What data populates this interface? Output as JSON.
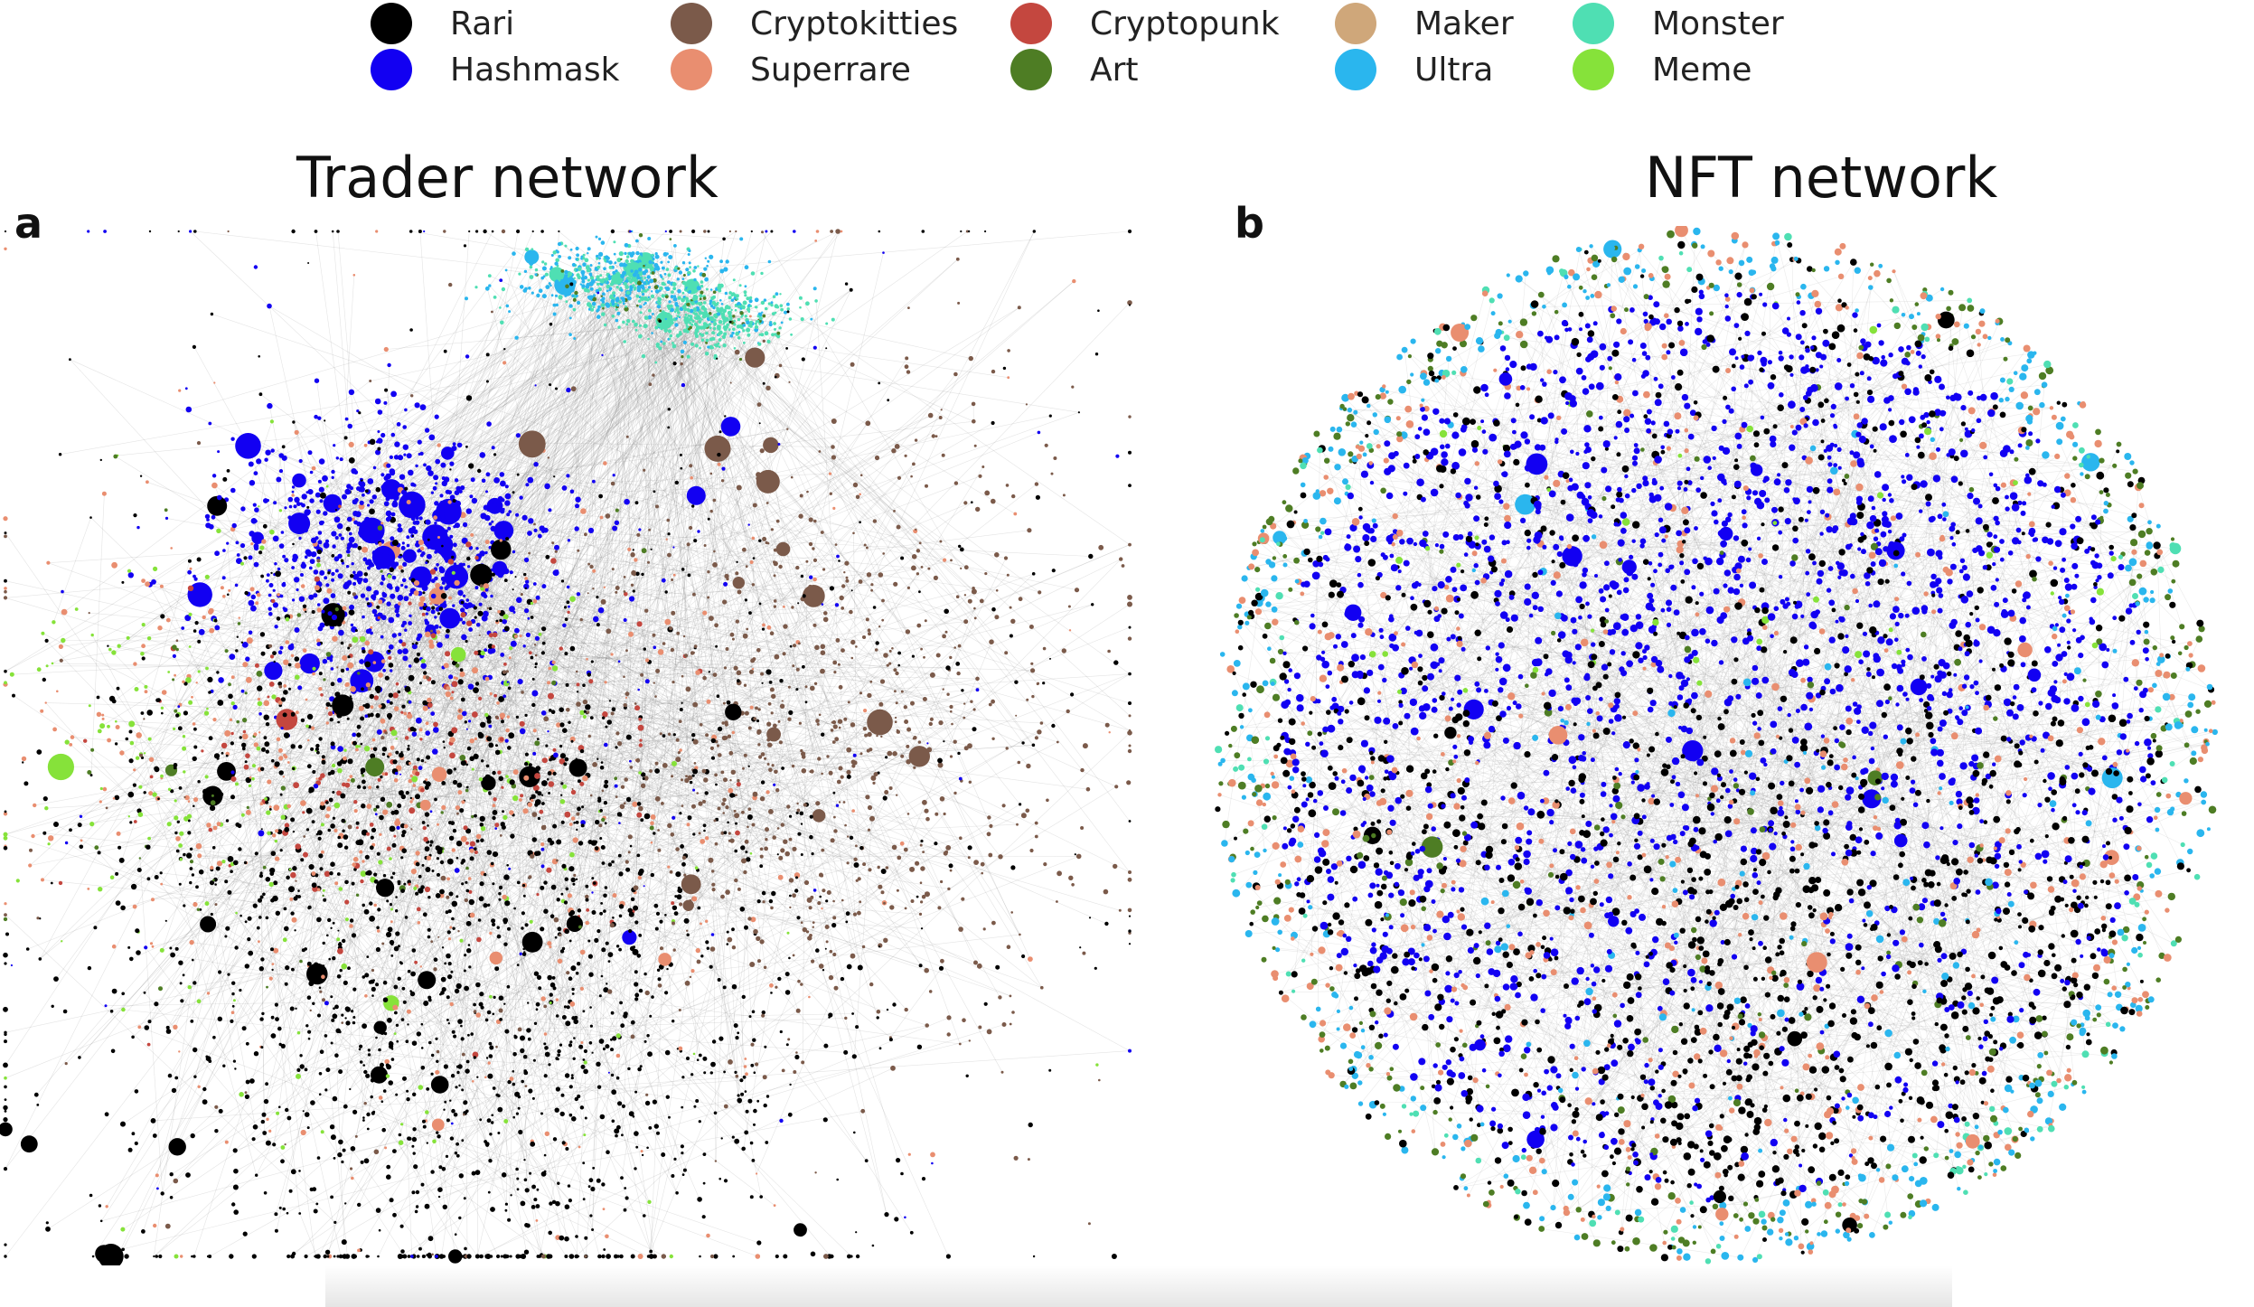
{
  "legend": {
    "items": [
      {
        "label": "Rari",
        "color": "#000000"
      },
      {
        "label": "Hashmask",
        "color": "#1200f2"
      },
      {
        "label": "Cryptokitties",
        "color": "#7b5a4a"
      },
      {
        "label": "Superrare",
        "color": "#e98e70"
      },
      {
        "label": "Cryptopunk",
        "color": "#c4473f"
      },
      {
        "label": "Art",
        "color": "#4e7d24"
      },
      {
        "label": "Maker",
        "color": "#cfa77a"
      },
      {
        "label": "Ultra",
        "color": "#2ab6ee"
      },
      {
        "label": "Monster",
        "color": "#4fdfb3"
      },
      {
        "label": "Meme",
        "color": "#86e23a"
      }
    ]
  },
  "panels": [
    {
      "letter": "a",
      "title": "Trader network"
    },
    {
      "letter": "b",
      "title": "NFT network"
    }
  ]
}
